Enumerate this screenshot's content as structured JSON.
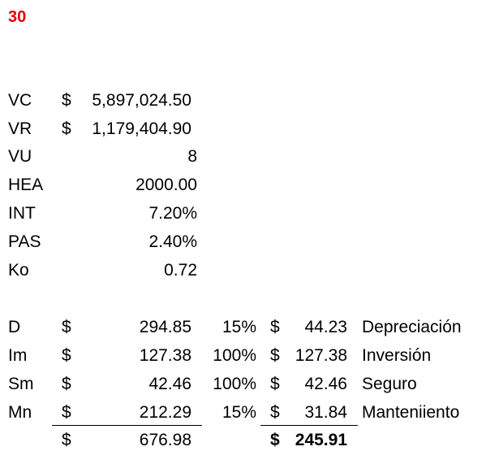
{
  "title": "30",
  "title_color": "#e00000",
  "params": [
    {
      "label": "VC",
      "currency": "$",
      "value": "5,897,024.50"
    },
    {
      "label": "VR",
      "currency": "$",
      "value": "1,179,404.90"
    },
    {
      "label": "VU",
      "currency": "",
      "value": "8"
    },
    {
      "label": "HEA",
      "currency": "",
      "value": "2000.00"
    },
    {
      "label": "INT",
      "currency": "",
      "value": "7.20%"
    },
    {
      "label": "PAS",
      "currency": "",
      "value": "2.40%"
    },
    {
      "label": "Ko",
      "currency": "",
      "value": "0.72"
    }
  ],
  "costs": [
    {
      "label": "D",
      "cur1": "$",
      "amount": "294.85",
      "pct": "15%",
      "cur2": "$",
      "result": "44.23",
      "desc": "Depreciación"
    },
    {
      "label": "Im",
      "cur1": "$",
      "amount": "127.38",
      "pct": "100%",
      "cur2": "$",
      "result": "127.38",
      "desc": "Inversión"
    },
    {
      "label": "Sm",
      "cur1": "$",
      "amount": "42.46",
      "pct": "100%",
      "cur2": "$",
      "result": "42.46",
      "desc": "Seguro"
    },
    {
      "label": "Mn",
      "cur1": "$",
      "amount": "212.29",
      "pct": "15%",
      "cur2": "$",
      "result": "31.84",
      "desc": "Manteniiento"
    }
  ],
  "totals": {
    "cur1": "$",
    "amount": "676.98",
    "cur2": "$",
    "result": "245.91"
  }
}
